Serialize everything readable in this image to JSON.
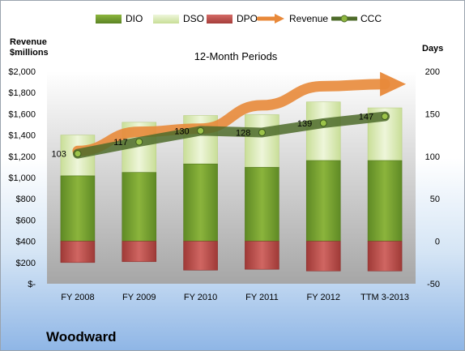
{
  "company": "Woodward",
  "chart_data": {
    "type": "bar",
    "subtitle": "12-Month Periods",
    "ylabel_left": "Revenue\n$millions",
    "ylabel_right": "Days",
    "categories": [
      "FY 2008",
      "FY 2009",
      "FY 2010",
      "FY 2011",
      "FY 2012",
      "TTM 3-2013"
    ],
    "left_axis": {
      "ylim": [
        0,
        2000
      ],
      "ticks": [
        0,
        200,
        400,
        600,
        800,
        1000,
        1200,
        1400,
        1600,
        1800,
        2000
      ],
      "tick_labels": [
        "$-",
        "$200",
        "$400",
        "$600",
        "$800",
        "$1,000",
        "$1,200",
        "$1,400",
        "$1,600",
        "$1,800",
        "$2,000"
      ]
    },
    "right_axis": {
      "ylim": [
        -50,
        200
      ],
      "ticks": [
        -50,
        0,
        50,
        100,
        150,
        200
      ],
      "tick_labels": [
        "-50",
        "0",
        "50",
        "100",
        "150",
        "200"
      ]
    },
    "series": [
      {
        "name": "DIO",
        "color": "#6f9a2e",
        "axis": "right",
        "values": [
          77,
          81,
          91,
          87,
          95,
          95
        ]
      },
      {
        "name": "DSO",
        "color": "#d9e9b5",
        "axis": "right",
        "values": [
          48,
          59,
          57,
          62,
          69,
          62
        ]
      },
      {
        "name": "DPO",
        "color": "#c0504d",
        "axis": "right",
        "values": [
          -25,
          -24,
          -34,
          -33,
          -35,
          -35
        ]
      },
      {
        "name": "Revenue",
        "color": "#e8893a",
        "axis": "left",
        "values": [
          1250,
          1430,
          1460,
          1680,
          1860,
          1880
        ]
      },
      {
        "name": "CCC",
        "color": "#4e6b2a",
        "axis": "right",
        "values": [
          103,
          117,
          130,
          128,
          139,
          147
        ]
      }
    ],
    "ccc_labels": [
      "103",
      "117",
      "130",
      "128",
      "139",
      "147"
    ],
    "grid": false,
    "legend": "top"
  }
}
